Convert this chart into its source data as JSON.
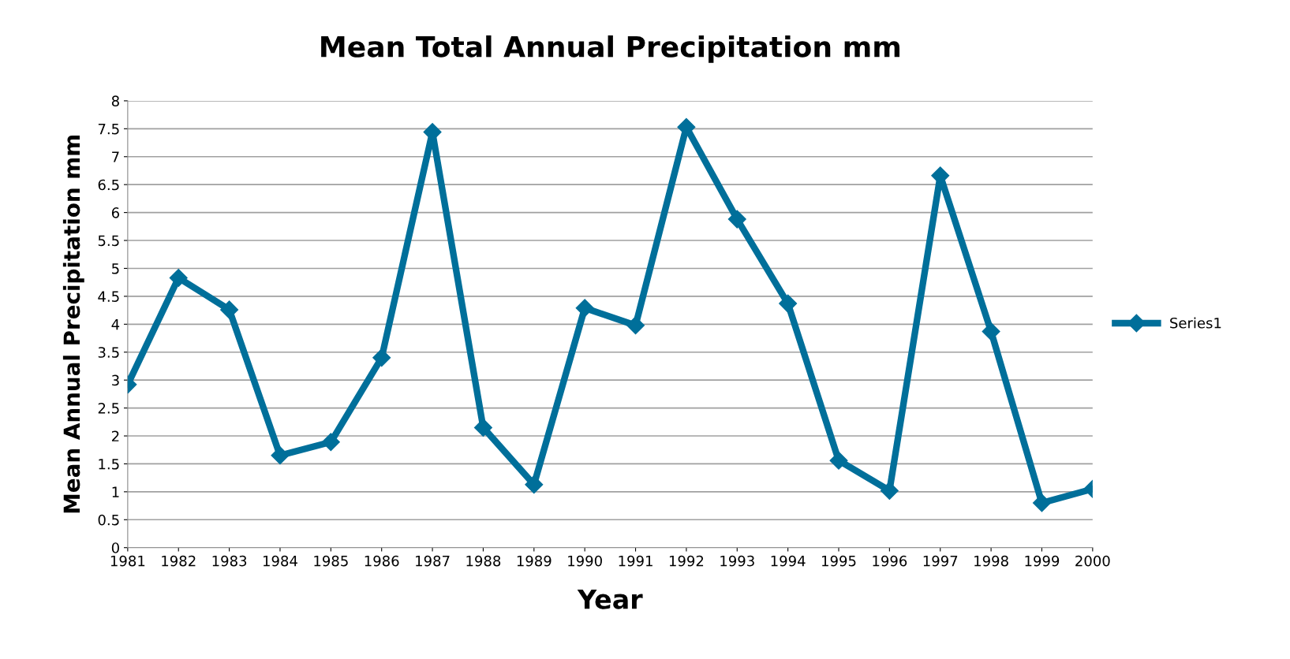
{
  "chart_data": {
    "type": "line",
    "title": "Mean Total Annual Precipitation mm",
    "xlabel": "Year",
    "ylabel": "Mean Annual Precipitation mm",
    "categories": [
      "1981",
      "1982",
      "1983",
      "1984",
      "1985",
      "1986",
      "1987",
      "1988",
      "1989",
      "1990",
      "1991",
      "1992",
      "1993",
      "1994",
      "1995",
      "1996",
      "1997",
      "1998",
      "1999",
      "2000"
    ],
    "series": [
      {
        "name": "Series1",
        "color": "#006f9a",
        "values": [
          2.92,
          4.83,
          4.26,
          1.65,
          1.89,
          3.4,
          7.44,
          2.15,
          1.13,
          4.29,
          3.98,
          7.53,
          5.88,
          4.37,
          1.56,
          1.02,
          6.66,
          3.87,
          0.8,
          1.05
        ]
      }
    ],
    "ylim": [
      0,
      8
    ],
    "yticks": [
      0,
      0.5,
      1,
      1.5,
      2,
      2.5,
      3,
      3.5,
      4,
      4.5,
      5,
      5.5,
      6,
      6.5,
      7,
      7.5,
      8
    ],
    "grid": "y",
    "legend": "right",
    "marker": "diamond",
    "line_style": "solid"
  }
}
